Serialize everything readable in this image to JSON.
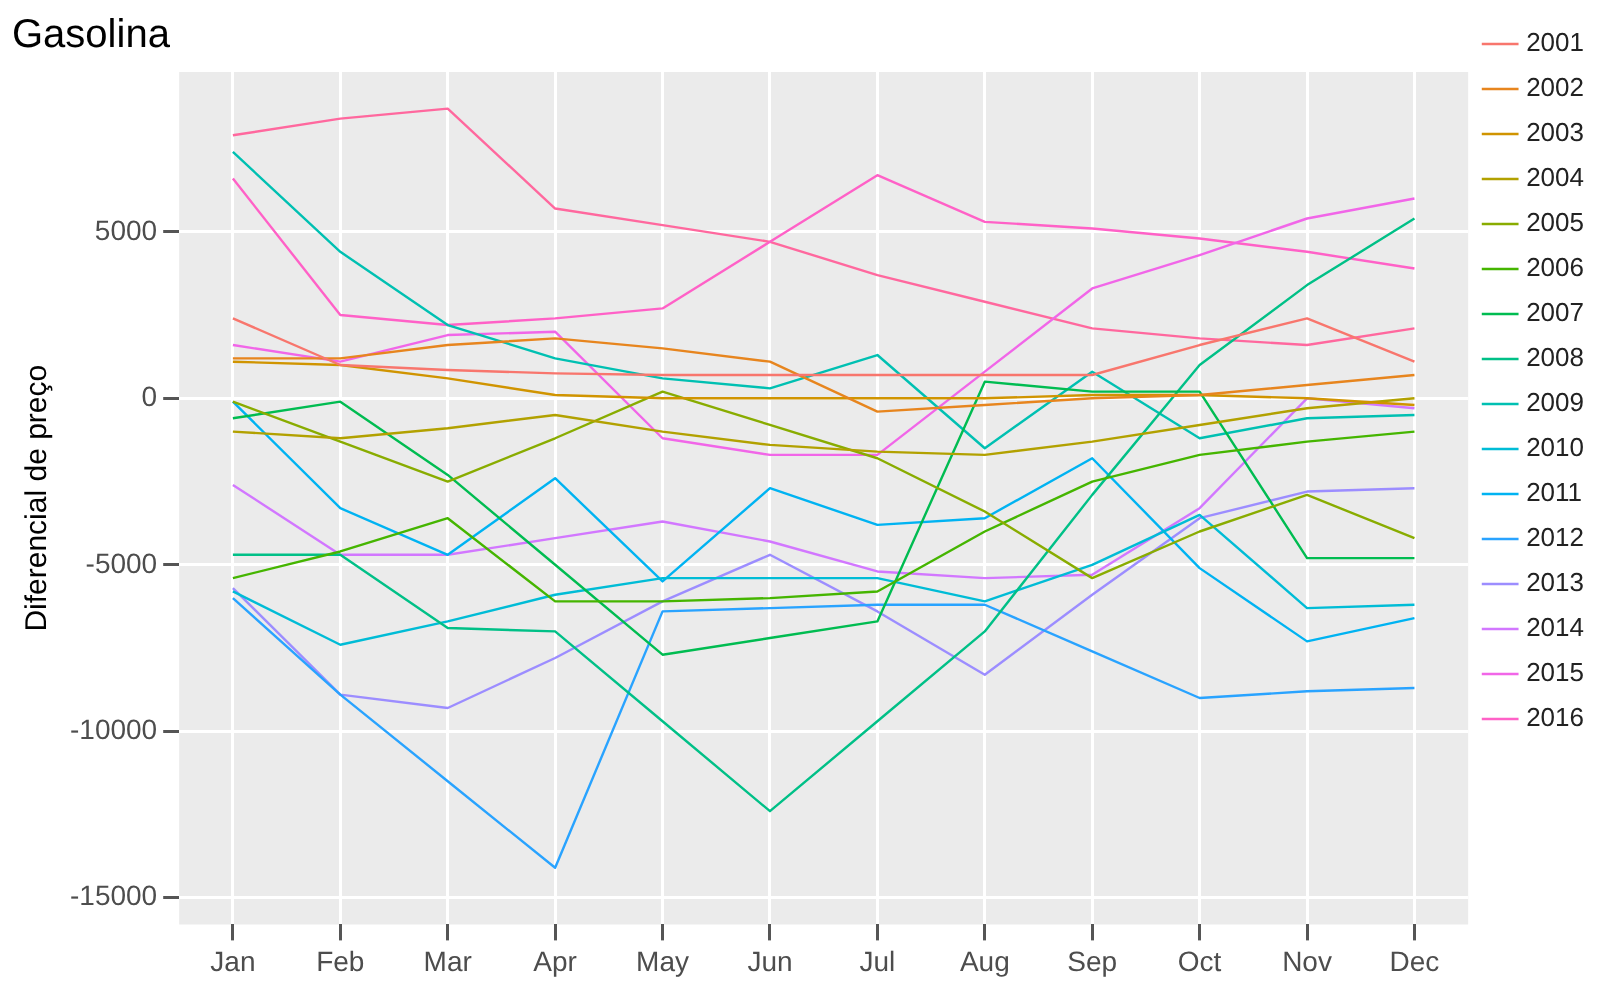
{
  "chart_data": {
    "type": "line",
    "title": "Gasolina",
    "ylabel": "Diferencial de preço",
    "categories": [
      "Jan",
      "Feb",
      "Mar",
      "Apr",
      "May",
      "Jun",
      "Jul",
      "Aug",
      "Sep",
      "Oct",
      "Nov",
      "Dec"
    ],
    "ylim": [
      -15800,
      9800
    ],
    "yticks": [
      -15000,
      -10000,
      -5000,
      0,
      5000
    ],
    "grid": true,
    "legend": "right",
    "marker": "none",
    "line_style": "solid",
    "series": [
      {
        "name": "2001",
        "color": "#f8766d",
        "values": [
          2400,
          1000,
          850,
          750,
          700,
          700,
          700,
          700,
          700,
          1600,
          2400,
          1100
        ]
      },
      {
        "name": "2002",
        "color": "#e7851e",
        "values": [
          1200,
          1200,
          1600,
          1800,
          1500,
          1100,
          -400,
          -200,
          0,
          100,
          400,
          700
        ]
      },
      {
        "name": "2003",
        "color": "#d09400",
        "values": [
          1100,
          1000,
          600,
          100,
          0,
          0,
          0,
          0,
          100,
          100,
          0,
          -200
        ]
      },
      {
        "name": "2004",
        "color": "#b2a100",
        "values": [
          -1000,
          -1200,
          -900,
          -500,
          -1000,
          -1400,
          -1600,
          -1700,
          -1300,
          -800,
          -300,
          0
        ]
      },
      {
        "name": "2005",
        "color": "#89ac00",
        "values": [
          -100,
          -1300,
          -2500,
          -1200,
          200,
          -800,
          -1800,
          -3400,
          -5400,
          -4000,
          -2900,
          -4200
        ]
      },
      {
        "name": "2006",
        "color": "#45b500",
        "values": [
          -5400,
          -4600,
          -3600,
          -6100,
          -6100,
          -6000,
          -5800,
          -4000,
          -2500,
          -1700,
          -1300,
          -1000
        ]
      },
      {
        "name": "2007",
        "color": "#00bc51",
        "values": [
          -600,
          -100,
          -2300,
          -5000,
          -7700,
          -7200,
          -6700,
          500,
          200,
          200,
          -4800,
          -4800
        ]
      },
      {
        "name": "2008",
        "color": "#00c087",
        "values": [
          -4700,
          -4700,
          -6900,
          -7000,
          -9700,
          -12400,
          -9700,
          -7000,
          -2900,
          1000,
          3400,
          5400
        ]
      },
      {
        "name": "2009",
        "color": "#00c0b2",
        "values": [
          7400,
          4400,
          2200,
          1200,
          600,
          300,
          1300,
          -1500,
          800,
          -1200,
          -600,
          -500
        ]
      },
      {
        "name": "2010",
        "color": "#00bcd6",
        "values": [
          -5800,
          -7400,
          -6700,
          -5900,
          -5400,
          -5400,
          -5400,
          -6100,
          -5000,
          -3500,
          -6300,
          -6200
        ]
      },
      {
        "name": "2011",
        "color": "#00b3f2",
        "values": [
          -100,
          -3300,
          -4700,
          -2400,
          -5500,
          -2700,
          -3800,
          -3600,
          -1800,
          -5100,
          -7300,
          -6600
        ]
      },
      {
        "name": "2012",
        "color": "#29a3ff",
        "values": [
          -6000,
          -8900,
          -11500,
          -14100,
          -6400,
          -6300,
          -6200,
          -6200,
          -7600,
          -9000,
          -8800,
          -8700
        ]
      },
      {
        "name": "2013",
        "color": "#9c8dff",
        "values": [
          -5700,
          -8900,
          -9300,
          -7800,
          -6100,
          -4700,
          -6400,
          -8300,
          -5900,
          -3600,
          -2800,
          -2700
        ]
      },
      {
        "name": "2014",
        "color": "#d277ff",
        "values": [
          -2600,
          -4700,
          -4700,
          -4200,
          -3700,
          -4300,
          -5200,
          -5400,
          -5300,
          -3300,
          0,
          -300
        ]
      },
      {
        "name": "2015",
        "color": "#f166e8",
        "values": [
          1600,
          1100,
          1900,
          2000,
          -1200,
          -1700,
          -1700,
          800,
          3300,
          4300,
          5400,
          6000
        ]
      },
      {
        "name": "2016",
        "color": "#ff61c7",
        "values": [
          6600,
          2500,
          2200,
          2400,
          2700,
          4700,
          6700,
          5300,
          5100,
          4800,
          4400,
          3900
        ]
      },
      {
        "color": "#ff689e",
        "values": [
          7900,
          8400,
          8700,
          5700,
          5200,
          4700,
          3700,
          2900,
          2100,
          1800,
          1600,
          2100
        ]
      }
    ]
  }
}
